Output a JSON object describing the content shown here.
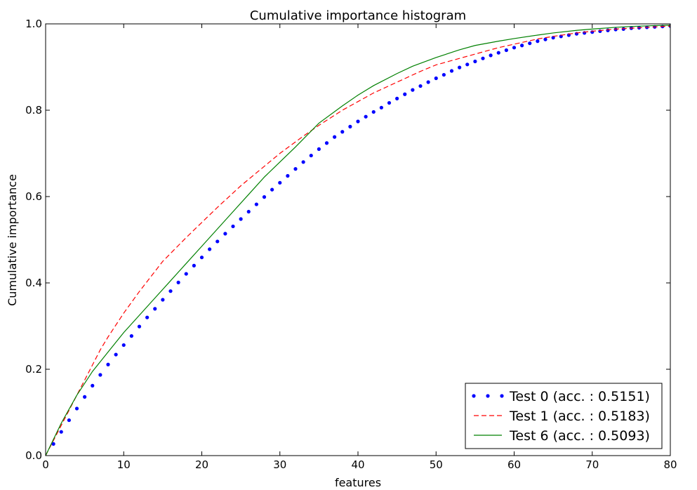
{
  "chart_data": {
    "type": "line",
    "title": "Cumulative importance histogram",
    "xlabel": "features",
    "ylabel": "Cumulative importance",
    "xlim": [
      0,
      80
    ],
    "ylim": [
      0,
      1.0
    ],
    "xticks": [
      0,
      10,
      20,
      30,
      40,
      50,
      60,
      70,
      80
    ],
    "yticks": [
      0.0,
      0.2,
      0.4,
      0.6,
      0.8,
      1.0
    ],
    "xtick_labels": [
      "0",
      "10",
      "20",
      "30",
      "40",
      "50",
      "60",
      "70",
      "80"
    ],
    "ytick_labels": [
      "0.0",
      "0.2",
      "0.4",
      "0.6",
      "0.8",
      "1.0"
    ],
    "grid": false,
    "legend_position": "bottom-right",
    "series": [
      {
        "name": "Test 0 (acc. : 0.5151)",
        "style": "dotted",
        "color": "#0000ff",
        "x": [
          1,
          2,
          3,
          4,
          5,
          6,
          7,
          8,
          9,
          10,
          11,
          12,
          13,
          14,
          15,
          16,
          17,
          18,
          19,
          20,
          21,
          22,
          23,
          24,
          25,
          26,
          27,
          28,
          29,
          30,
          31,
          32,
          33,
          34,
          35,
          36,
          37,
          38,
          39,
          40,
          41,
          42,
          43,
          44,
          45,
          46,
          47,
          48,
          49,
          50,
          51,
          52,
          53,
          54,
          55,
          56,
          57,
          58,
          59,
          60,
          61,
          62,
          63,
          64,
          65,
          66,
          67,
          68,
          69,
          70,
          71,
          72,
          73,
          74,
          75,
          76,
          77,
          78,
          79,
          80
        ],
        "y": [
          0.027,
          0.055,
          0.082,
          0.109,
          0.136,
          0.162,
          0.187,
          0.211,
          0.234,
          0.256,
          0.277,
          0.299,
          0.32,
          0.34,
          0.361,
          0.381,
          0.401,
          0.421,
          0.44,
          0.459,
          0.478,
          0.496,
          0.514,
          0.531,
          0.548,
          0.565,
          0.582,
          0.599,
          0.616,
          0.632,
          0.648,
          0.664,
          0.68,
          0.695,
          0.71,
          0.724,
          0.738,
          0.75,
          0.762,
          0.774,
          0.785,
          0.796,
          0.806,
          0.817,
          0.827,
          0.837,
          0.847,
          0.856,
          0.865,
          0.874,
          0.882,
          0.891,
          0.899,
          0.906,
          0.913,
          0.92,
          0.927,
          0.933,
          0.939,
          0.945,
          0.95,
          0.955,
          0.96,
          0.964,
          0.968,
          0.971,
          0.974,
          0.977,
          0.979,
          0.981,
          0.983,
          0.985,
          0.987,
          0.988,
          0.99,
          0.991,
          0.992,
          0.993,
          0.994,
          0.995
        ]
      },
      {
        "name": "Test 1 (acc. : 0.5183)",
        "style": "dashed",
        "color": "#ff0000",
        "x": [
          0,
          1,
          2,
          3,
          4,
          5,
          6,
          7,
          8,
          10,
          12,
          15,
          18,
          20,
          22,
          25,
          28,
          30,
          33,
          35,
          38,
          40,
          42,
          45,
          48,
          50,
          53,
          55,
          58,
          60,
          63,
          65,
          68,
          70,
          73,
          75,
          78,
          80
        ],
        "y": [
          0.0,
          0.035,
          0.07,
          0.105,
          0.14,
          0.175,
          0.21,
          0.245,
          0.275,
          0.33,
          0.38,
          0.45,
          0.505,
          0.54,
          0.575,
          0.625,
          0.67,
          0.7,
          0.74,
          0.765,
          0.8,
          0.82,
          0.84,
          0.865,
          0.89,
          0.905,
          0.92,
          0.93,
          0.945,
          0.953,
          0.965,
          0.971,
          0.979,
          0.983,
          0.988,
          0.99,
          0.993,
          0.995
        ]
      },
      {
        "name": "Test 6 (acc. : 0.5093)",
        "style": "solid",
        "color": "#008000",
        "x": [
          0,
          2,
          4,
          6,
          8,
          10,
          12,
          14,
          16,
          18,
          20,
          22,
          24,
          26,
          28,
          30,
          32,
          35,
          38,
          40,
          42,
          45,
          47,
          50,
          53,
          55,
          58,
          60,
          63,
          65,
          68,
          70,
          73,
          75,
          78,
          80
        ],
        "y": [
          0.0,
          0.075,
          0.14,
          0.195,
          0.24,
          0.285,
          0.325,
          0.365,
          0.405,
          0.445,
          0.485,
          0.525,
          0.565,
          0.605,
          0.645,
          0.68,
          0.715,
          0.77,
          0.81,
          0.835,
          0.857,
          0.885,
          0.902,
          0.922,
          0.94,
          0.95,
          0.96,
          0.966,
          0.974,
          0.979,
          0.985,
          0.988,
          0.992,
          0.994,
          0.996,
          0.997
        ]
      }
    ]
  }
}
